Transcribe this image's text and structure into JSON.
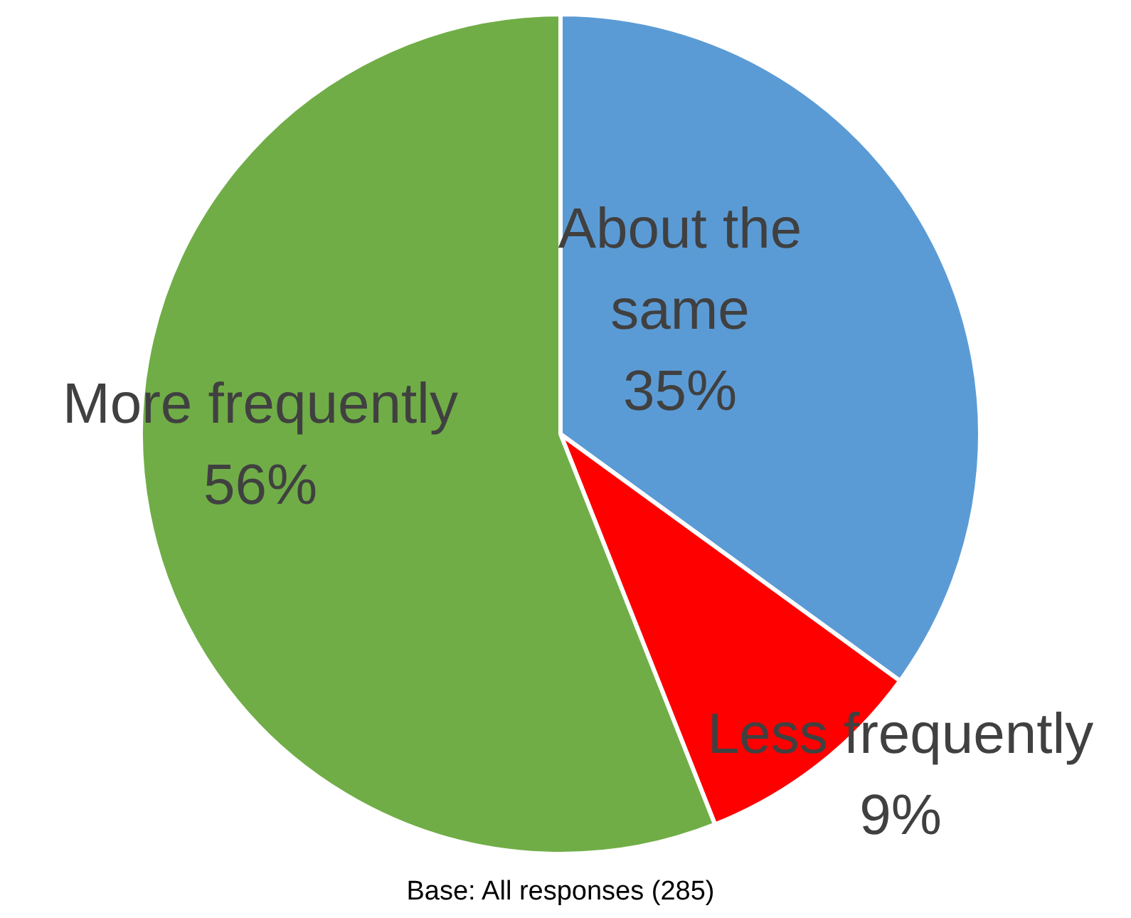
{
  "chart_data": {
    "type": "pie",
    "categories": [
      "About the same",
      "Less frequently",
      "More frequently"
    ],
    "values": [
      35,
      9,
      56
    ],
    "colors": [
      "#5b9bd5",
      "#ff0000",
      "#70ad47"
    ],
    "value_labels": [
      "35%",
      "9%",
      "56%"
    ],
    "annotations": [
      "Base: All responses (285)"
    ]
  }
}
